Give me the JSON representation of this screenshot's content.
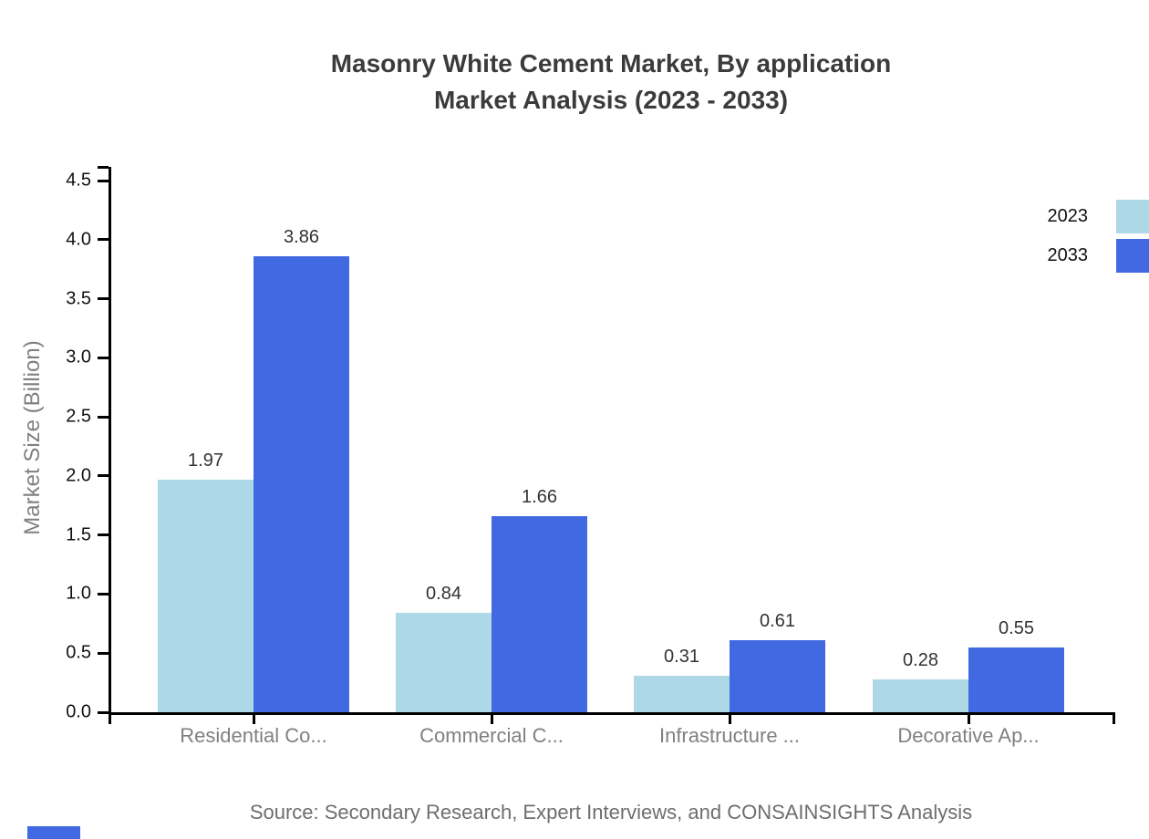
{
  "title": {
    "line1": "Masonry White Cement Market, By application",
    "line2": "Market Analysis (2023 - 2033)"
  },
  "ylabel": "Market Size (Billion)",
  "source": "Source: Secondary Research, Expert Interviews, and CONSAINSIGHTS Analysis",
  "legend": {
    "entries": [
      {
        "label": "2023",
        "color": "#ADD8E6"
      },
      {
        "label": "2033",
        "color": "#4169E1"
      }
    ]
  },
  "colors": {
    "series_2023": "#ADD8E6",
    "series_2033": "#4169E1",
    "title_text": "#3B3B3B",
    "axis": "#000000",
    "category_text": "#808080",
    "value_label_text": "#333333",
    "source_text": "#6E6E6E"
  },
  "chart_data": {
    "type": "bar",
    "title": "Masonry White Cement Market, By application Market Analysis (2023 - 2033)",
    "categories": [
      "Residential Co...",
      "Commercial C...",
      "Infrastructure ...",
      "Decorative Ap..."
    ],
    "series": [
      {
        "name": "2023",
        "color": "#ADD8E6",
        "values": [
          1.97,
          0.84,
          0.31,
          0.28
        ]
      },
      {
        "name": "2033",
        "color": "#4169E1",
        "values": [
          3.86,
          1.66,
          0.61,
          0.55
        ]
      }
    ],
    "xlabel": "",
    "ylabel": "Market Size (Billion)",
    "ylim": [
      0,
      4.5
    ],
    "ytick_step": 0.5,
    "yticks": [
      "0.0",
      "0.5",
      "1.0",
      "1.5",
      "2.0",
      "2.5",
      "3.0",
      "3.5",
      "4.0",
      "4.5"
    ],
    "grid": false,
    "value_labels": true,
    "legend_position": "top-right"
  }
}
